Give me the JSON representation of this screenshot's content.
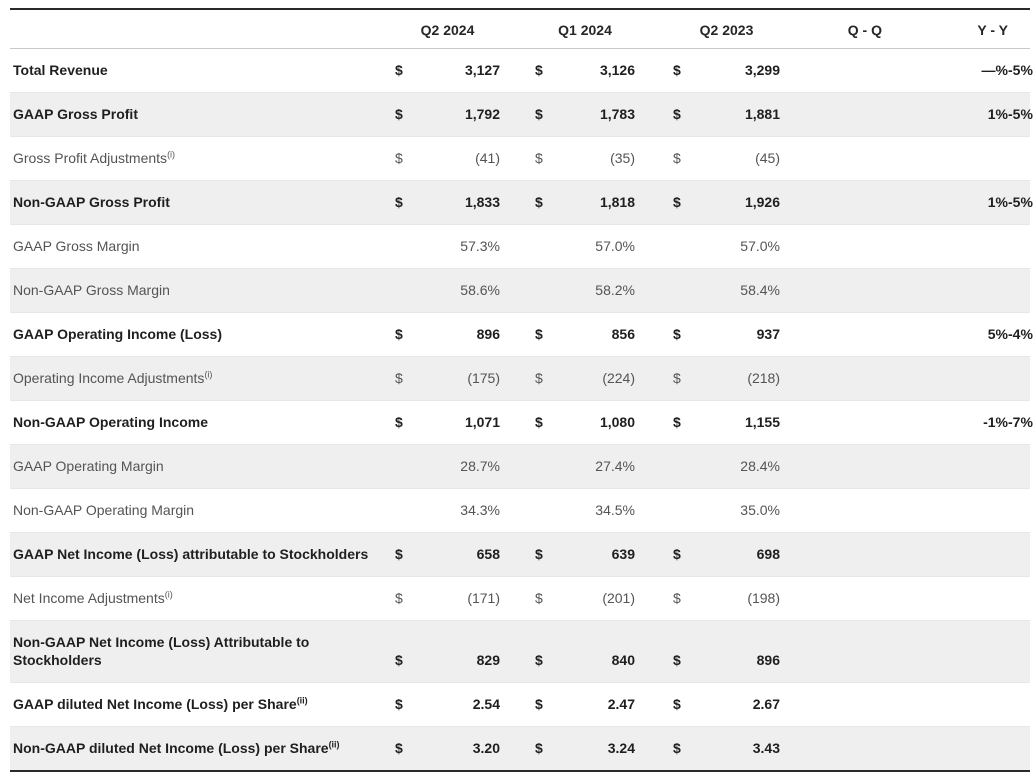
{
  "table": {
    "columns": {
      "label": "",
      "q2_2024": "Q2 2024",
      "q1_2024": "Q1 2024",
      "q2_2023": "Q2 2023",
      "qq": "Q - Q",
      "yy": "Y - Y"
    },
    "currency_symbol": "$",
    "rows": [
      {
        "label": "Total Revenue",
        "sup": "",
        "emphasis": true,
        "dollar": true,
        "values": [
          "3,127",
          "3,126",
          "3,299"
        ],
        "qq": "—%",
        "yy": "-5%"
      },
      {
        "label": "GAAP Gross Profit",
        "sup": "",
        "emphasis": true,
        "dollar": true,
        "values": [
          "1,792",
          "1,783",
          "1,881"
        ],
        "qq": "1%",
        "yy": "-5%"
      },
      {
        "label": "Gross Profit Adjustments",
        "sup": "(i)",
        "emphasis": false,
        "dollar": true,
        "values": [
          "(41)",
          "(35)",
          "(45)"
        ],
        "qq": "",
        "yy": ""
      },
      {
        "label": "Non-GAAP Gross Profit",
        "sup": "",
        "emphasis": true,
        "dollar": true,
        "values": [
          "1,833",
          "1,818",
          "1,926"
        ],
        "qq": "1%",
        "yy": "-5%"
      },
      {
        "label": "GAAP Gross Margin",
        "sup": "",
        "emphasis": false,
        "dollar": false,
        "values": [
          "57.3%",
          "57.0%",
          "57.0%"
        ],
        "qq": "",
        "yy": ""
      },
      {
        "label": "Non-GAAP Gross Margin",
        "sup": "",
        "emphasis": false,
        "dollar": false,
        "values": [
          "58.6%",
          "58.2%",
          "58.4%"
        ],
        "qq": "",
        "yy": ""
      },
      {
        "label": "GAAP Operating Income (Loss)",
        "sup": "",
        "emphasis": true,
        "dollar": true,
        "values": [
          "896",
          "856",
          "937"
        ],
        "qq": "5%",
        "yy": "-4%"
      },
      {
        "label": "Operating Income Adjustments",
        "sup": "(i)",
        "emphasis": false,
        "dollar": true,
        "values": [
          "(175)",
          "(224)",
          "(218)"
        ],
        "qq": "",
        "yy": ""
      },
      {
        "label": "Non-GAAP Operating Income",
        "sup": "",
        "emphasis": true,
        "dollar": true,
        "values": [
          "1,071",
          "1,080",
          "1,155"
        ],
        "qq": "-1%",
        "yy": "-7%"
      },
      {
        "label": "GAAP Operating Margin",
        "sup": "",
        "emphasis": false,
        "dollar": false,
        "values": [
          "28.7%",
          "27.4%",
          "28.4%"
        ],
        "qq": "",
        "yy": ""
      },
      {
        "label": "Non-GAAP Operating Margin",
        "sup": "",
        "emphasis": false,
        "dollar": false,
        "values": [
          "34.3%",
          "34.5%",
          "35.0%"
        ],
        "qq": "",
        "yy": ""
      },
      {
        "label": "GAAP Net Income (Loss) attributable to Stockholders",
        "sup": "",
        "emphasis": true,
        "dollar": true,
        "values": [
          "658",
          "639",
          "698"
        ],
        "qq": "",
        "yy": ""
      },
      {
        "label": "Net Income Adjustments",
        "sup": "(i)",
        "emphasis": false,
        "dollar": true,
        "values": [
          "(171)",
          "(201)",
          "(198)"
        ],
        "qq": "",
        "yy": ""
      },
      {
        "label": "Non-GAAP Net Income (Loss) Attributable to Stockholders",
        "sup": "",
        "emphasis": true,
        "dollar": true,
        "values": [
          "829",
          "840",
          "896"
        ],
        "qq": "",
        "yy": ""
      },
      {
        "label": "GAAP diluted Net Income (Loss) per Share",
        "sup": "(ii)",
        "emphasis": true,
        "dollar": true,
        "values": [
          "2.54",
          "2.47",
          "2.67"
        ],
        "qq": "",
        "yy": ""
      },
      {
        "label": "Non-GAAP diluted Net Income (Loss) per Share",
        "sup": "(ii)",
        "emphasis": true,
        "dollar": true,
        "values": [
          "3.20",
          "3.24",
          "3.43"
        ],
        "qq": "",
        "yy": ""
      }
    ]
  },
  "colors": {
    "stripe": "#efefef",
    "emphasis_text": "#1f1f1f",
    "muted_text": "#545454",
    "frame_border": "#2a2a2a",
    "header_border": "#c9c9c9"
  }
}
